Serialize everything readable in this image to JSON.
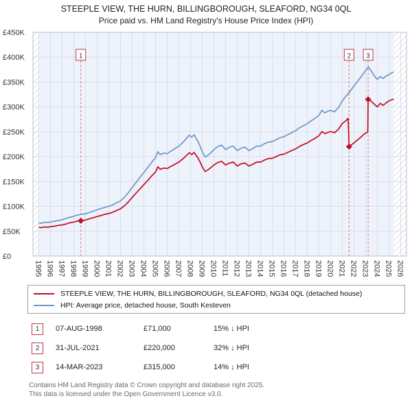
{
  "header": {
    "title_line1": "STEEPLE VIEW, THE HURN, BILLINGBOROUGH, SLEAFORD, NG34 0QL",
    "title_line2": "Price paid vs. HM Land Registry's House Price Index (HPI)"
  },
  "chart_data": {
    "type": "line",
    "title": "STEEPLE VIEW, THE HURN, BILLINGBOROUGH, SLEAFORD, NG34 0QL — Price paid vs. HM Land Registry's House Price Index (HPI)",
    "xlabel": "",
    "ylabel": "",
    "x_range": [
      1994.5,
      2026.5
    ],
    "y_range": [
      0,
      450000
    ],
    "y_tick_step": 50000,
    "y_tick_labels": [
      "£0",
      "£50K",
      "£100K",
      "£150K",
      "£200K",
      "£250K",
      "£300K",
      "£350K",
      "£400K",
      "£450K"
    ],
    "x_ticks": [
      1995,
      1996,
      1997,
      1998,
      1999,
      2000,
      2001,
      2002,
      2003,
      2004,
      2005,
      2006,
      2007,
      2008,
      2009,
      2010,
      2011,
      2012,
      2013,
      2014,
      2015,
      2016,
      2017,
      2018,
      2019,
      2020,
      2021,
      2022,
      2023,
      2024,
      2025,
      2026
    ],
    "grid": true,
    "legend_position": "bottom",
    "hatch_regions": [
      [
        1994.5,
        1995.05
      ],
      [
        2025.4,
        2026.5
      ]
    ],
    "marker_label_value": 404000,
    "colors": {
      "plot_bg": "#eef2fa",
      "grid": "#d7dfee",
      "border": "#b7c0cf",
      "sale_line": "#d96a7c",
      "sale_marker": "#c00c24",
      "price_line": "#c40a20",
      "hpi_line": "#6e96c8"
    },
    "markers": [
      {
        "label": "1",
        "x": 1998.6,
        "y": 71000
      },
      {
        "label": "2",
        "x": 2021.58,
        "y": 220000
      },
      {
        "label": "3",
        "x": 2023.21,
        "y": 315000
      }
    ],
    "series": [
      {
        "name": "STEEPLE VIEW, THE HURN, BILLINGBOROUGH, SLEAFORD, NG34 0QL (detached house)",
        "color": "#c40a20",
        "points": [
          [
            1995.0,
            58000
          ],
          [
            1995.25,
            57000
          ],
          [
            1995.5,
            58500
          ],
          [
            1995.75,
            58000
          ],
          [
            1996.0,
            59000
          ],
          [
            1996.33,
            60000
          ],
          [
            1996.66,
            61500
          ],
          [
            1997.0,
            62500
          ],
          [
            1997.33,
            64500
          ],
          [
            1997.66,
            67000
          ],
          [
            1998.0,
            68500
          ],
          [
            1998.33,
            70500
          ],
          [
            1998.6,
            71000
          ],
          [
            1999.0,
            72500
          ],
          [
            1999.33,
            75000
          ],
          [
            1999.66,
            77000
          ],
          [
            2000.0,
            79500
          ],
          [
            2000.33,
            81500
          ],
          [
            2000.66,
            84000
          ],
          [
            2001.0,
            85500
          ],
          [
            2001.33,
            88000
          ],
          [
            2001.66,
            91500
          ],
          [
            2002.0,
            95000
          ],
          [
            2002.33,
            101000
          ],
          [
            2002.66,
            108500
          ],
          [
            2003.0,
            118000
          ],
          [
            2003.33,
            126500
          ],
          [
            2003.66,
            135000
          ],
          [
            2004.0,
            143500
          ],
          [
            2004.33,
            152000
          ],
          [
            2004.66,
            161000
          ],
          [
            2005.0,
            169000
          ],
          [
            2005.2,
            179500
          ],
          [
            2005.4,
            174500
          ],
          [
            2005.7,
            177000
          ],
          [
            2006.0,
            176000
          ],
          [
            2006.33,
            180500
          ],
          [
            2006.66,
            184500
          ],
          [
            2007.0,
            189000
          ],
          [
            2007.33,
            195000
          ],
          [
            2007.66,
            202500
          ],
          [
            2007.9,
            208000
          ],
          [
            2008.1,
            204000
          ],
          [
            2008.3,
            208500
          ],
          [
            2008.6,
            198500
          ],
          [
            2008.8,
            190000
          ],
          [
            2009.0,
            179500
          ],
          [
            2009.25,
            170000
          ],
          [
            2009.5,
            173500
          ],
          [
            2009.75,
            178000
          ],
          [
            2010.0,
            183000
          ],
          [
            2010.33,
            188000
          ],
          [
            2010.66,
            190500
          ],
          [
            2011.0,
            183000
          ],
          [
            2011.33,
            187000
          ],
          [
            2011.66,
            189000
          ],
          [
            2012.0,
            181000
          ],
          [
            2012.33,
            185500
          ],
          [
            2012.66,
            187000
          ],
          [
            2013.0,
            181000
          ],
          [
            2013.33,
            184500
          ],
          [
            2013.66,
            189000
          ],
          [
            2014.0,
            189000
          ],
          [
            2014.33,
            193000
          ],
          [
            2014.66,
            196000
          ],
          [
            2015.0,
            196500
          ],
          [
            2015.33,
            200000
          ],
          [
            2015.66,
            203500
          ],
          [
            2016.0,
            205000
          ],
          [
            2016.33,
            208500
          ],
          [
            2016.66,
            212000
          ],
          [
            2017.0,
            215500
          ],
          [
            2017.33,
            220500
          ],
          [
            2017.66,
            224000
          ],
          [
            2018.0,
            227500
          ],
          [
            2018.33,
            232500
          ],
          [
            2018.66,
            236800
          ],
          [
            2019.0,
            242000
          ],
          [
            2019.25,
            250500
          ],
          [
            2019.5,
            246000
          ],
          [
            2019.75,
            248500
          ],
          [
            2020.0,
            250500
          ],
          [
            2020.33,
            248000
          ],
          [
            2020.66,
            254500
          ],
          [
            2021.0,
            266500
          ],
          [
            2021.3,
            272000
          ],
          [
            2021.5,
            277000
          ],
          [
            2021.58,
            220000
          ],
          [
            2021.8,
            224000
          ],
          [
            2022.0,
            227500
          ],
          [
            2022.33,
            234000
          ],
          [
            2022.66,
            240500
          ],
          [
            2022.9,
            246000
          ],
          [
            2023.1,
            248000
          ],
          [
            2023.18,
            250000
          ],
          [
            2023.21,
            315000
          ],
          [
            2023.5,
            311000
          ],
          [
            2023.75,
            305000
          ],
          [
            2024.0,
            300000
          ],
          [
            2024.25,
            307000
          ],
          [
            2024.5,
            303000
          ],
          [
            2024.75,
            308000
          ],
          [
            2025.0,
            312000
          ],
          [
            2025.2,
            314000
          ],
          [
            2025.4,
            316000
          ]
        ]
      },
      {
        "name": "HPI: Average price, detached house, South Kesteven",
        "color": "#6e96c8",
        "points": [
          [
            1995.0,
            67000
          ],
          [
            1995.25,
            66000
          ],
          [
            1995.5,
            68000
          ],
          [
            1995.75,
            67500
          ],
          [
            1996.0,
            68500
          ],
          [
            1996.33,
            70000
          ],
          [
            1996.66,
            71500
          ],
          [
            1997.0,
            73000
          ],
          [
            1997.33,
            75500
          ],
          [
            1997.66,
            78000
          ],
          [
            1998.0,
            80000
          ],
          [
            1998.33,
            82500
          ],
          [
            1998.66,
            84000
          ],
          [
            1999.0,
            85000
          ],
          [
            1999.33,
            87500
          ],
          [
            1999.66,
            90000
          ],
          [
            2000.0,
            93000
          ],
          [
            2000.33,
            95500
          ],
          [
            2000.66,
            98000
          ],
          [
            2001.0,
            100000
          ],
          [
            2001.33,
            103000
          ],
          [
            2001.66,
            107000
          ],
          [
            2002.0,
            111000
          ],
          [
            2002.33,
            118000
          ],
          [
            2002.66,
            127000
          ],
          [
            2003.0,
            138000
          ],
          [
            2003.33,
            148000
          ],
          [
            2003.66,
            158000
          ],
          [
            2004.0,
            168000
          ],
          [
            2004.33,
            178000
          ],
          [
            2004.66,
            188000
          ],
          [
            2005.0,
            198000
          ],
          [
            2005.2,
            210000
          ],
          [
            2005.4,
            204000
          ],
          [
            2005.7,
            207000
          ],
          [
            2006.0,
            206000
          ],
          [
            2006.33,
            211000
          ],
          [
            2006.66,
            216000
          ],
          [
            2007.0,
            221000
          ],
          [
            2007.33,
            228000
          ],
          [
            2007.66,
            237000
          ],
          [
            2007.9,
            243000
          ],
          [
            2008.1,
            239000
          ],
          [
            2008.3,
            244000
          ],
          [
            2008.6,
            232000
          ],
          [
            2008.8,
            222000
          ],
          [
            2009.0,
            210000
          ],
          [
            2009.25,
            199000
          ],
          [
            2009.5,
            203000
          ],
          [
            2009.75,
            208000
          ],
          [
            2010.0,
            214000
          ],
          [
            2010.33,
            220000
          ],
          [
            2010.66,
            223000
          ],
          [
            2011.0,
            214000
          ],
          [
            2011.33,
            219000
          ],
          [
            2011.66,
            221000
          ],
          [
            2012.0,
            212000
          ],
          [
            2012.33,
            217000
          ],
          [
            2012.66,
            219000
          ],
          [
            2013.0,
            212000
          ],
          [
            2013.33,
            216000
          ],
          [
            2013.66,
            221000
          ],
          [
            2014.0,
            221000
          ],
          [
            2014.33,
            226000
          ],
          [
            2014.66,
            229000
          ],
          [
            2015.0,
            230000
          ],
          [
            2015.33,
            234000
          ],
          [
            2015.66,
            238000
          ],
          [
            2016.0,
            240000
          ],
          [
            2016.33,
            244000
          ],
          [
            2016.66,
            248000
          ],
          [
            2017.0,
            252000
          ],
          [
            2017.33,
            258000
          ],
          [
            2017.66,
            262000
          ],
          [
            2018.0,
            266000
          ],
          [
            2018.33,
            272000
          ],
          [
            2018.66,
            277000
          ],
          [
            2019.0,
            283000
          ],
          [
            2019.25,
            293000
          ],
          [
            2019.5,
            288000
          ],
          [
            2019.75,
            291000
          ],
          [
            2020.0,
            293000
          ],
          [
            2020.33,
            290000
          ],
          [
            2020.66,
            298000
          ],
          [
            2021.0,
            312000
          ],
          [
            2021.33,
            322000
          ],
          [
            2021.66,
            331000
          ],
          [
            2022.0,
            342000
          ],
          [
            2022.33,
            352000
          ],
          [
            2022.66,
            362000
          ],
          [
            2022.9,
            370000
          ],
          [
            2023.1,
            376000
          ],
          [
            2023.25,
            380000
          ],
          [
            2023.5,
            371000
          ],
          [
            2023.75,
            362000
          ],
          [
            2024.0,
            355000
          ],
          [
            2024.25,
            361000
          ],
          [
            2024.5,
            357000
          ],
          [
            2024.75,
            362000
          ],
          [
            2025.0,
            365000
          ],
          [
            2025.2,
            368000
          ],
          [
            2025.4,
            370000
          ]
        ]
      }
    ]
  },
  "legend": {
    "items": [
      {
        "label": "STEEPLE VIEW, THE HURN, BILLINGBOROUGH, SLEAFORD, NG34 0QL (detached house)",
        "color": "#c40a20"
      },
      {
        "label": "HPI: Average price, detached house, South Kesteven",
        "color": "#6e96c8"
      }
    ]
  },
  "transactions": [
    {
      "num": "1",
      "date": "07-AUG-1998",
      "price": "£71,000",
      "hpi_delta": "15% ↓ HPI"
    },
    {
      "num": "2",
      "date": "31-JUL-2021",
      "price": "£220,000",
      "hpi_delta": "32% ↓ HPI"
    },
    {
      "num": "3",
      "date": "14-MAR-2023",
      "price": "£315,000",
      "hpi_delta": "14% ↓ HPI"
    }
  ],
  "footer": {
    "line1": "Contains HM Land Registry data © Crown copyright and database right 2025.",
    "line2": "This data is licensed under the Open Government Licence v3.0."
  }
}
